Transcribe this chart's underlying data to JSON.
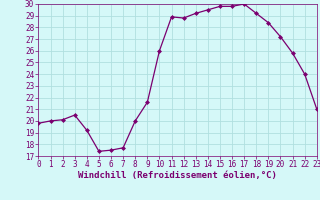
{
  "x": [
    0,
    1,
    2,
    3,
    4,
    5,
    6,
    7,
    8,
    9,
    10,
    11,
    12,
    13,
    14,
    15,
    16,
    17,
    18,
    19,
    20,
    21,
    22,
    23
  ],
  "y": [
    19.8,
    20.0,
    20.1,
    20.5,
    19.2,
    17.4,
    17.5,
    17.7,
    20.0,
    21.6,
    26.0,
    28.9,
    28.8,
    29.2,
    29.5,
    29.8,
    29.8,
    30.0,
    29.2,
    28.4,
    27.2,
    25.8,
    24.0,
    21.0
  ],
  "line_color": "#7B0070",
  "marker": "D",
  "marker_size": 2,
  "bg_color": "#d5f8f8",
  "grid_color": "#b0e0e0",
  "xlabel": "Windchill (Refroidissement éolien,°C)",
  "xlabel_color": "#7B0070",
  "ylim": [
    17,
    30
  ],
  "xlim": [
    0,
    23
  ],
  "yticks": [
    17,
    18,
    19,
    20,
    21,
    22,
    23,
    24,
    25,
    26,
    27,
    28,
    29,
    30
  ],
  "xticks": [
    0,
    1,
    2,
    3,
    4,
    5,
    6,
    7,
    8,
    9,
    10,
    11,
    12,
    13,
    14,
    15,
    16,
    17,
    18,
    19,
    20,
    21,
    22,
    23
  ],
  "tick_color": "#7B0070",
  "tick_fontsize": 5.5,
  "xlabel_fontsize": 6.5,
  "linewidth": 0.9
}
